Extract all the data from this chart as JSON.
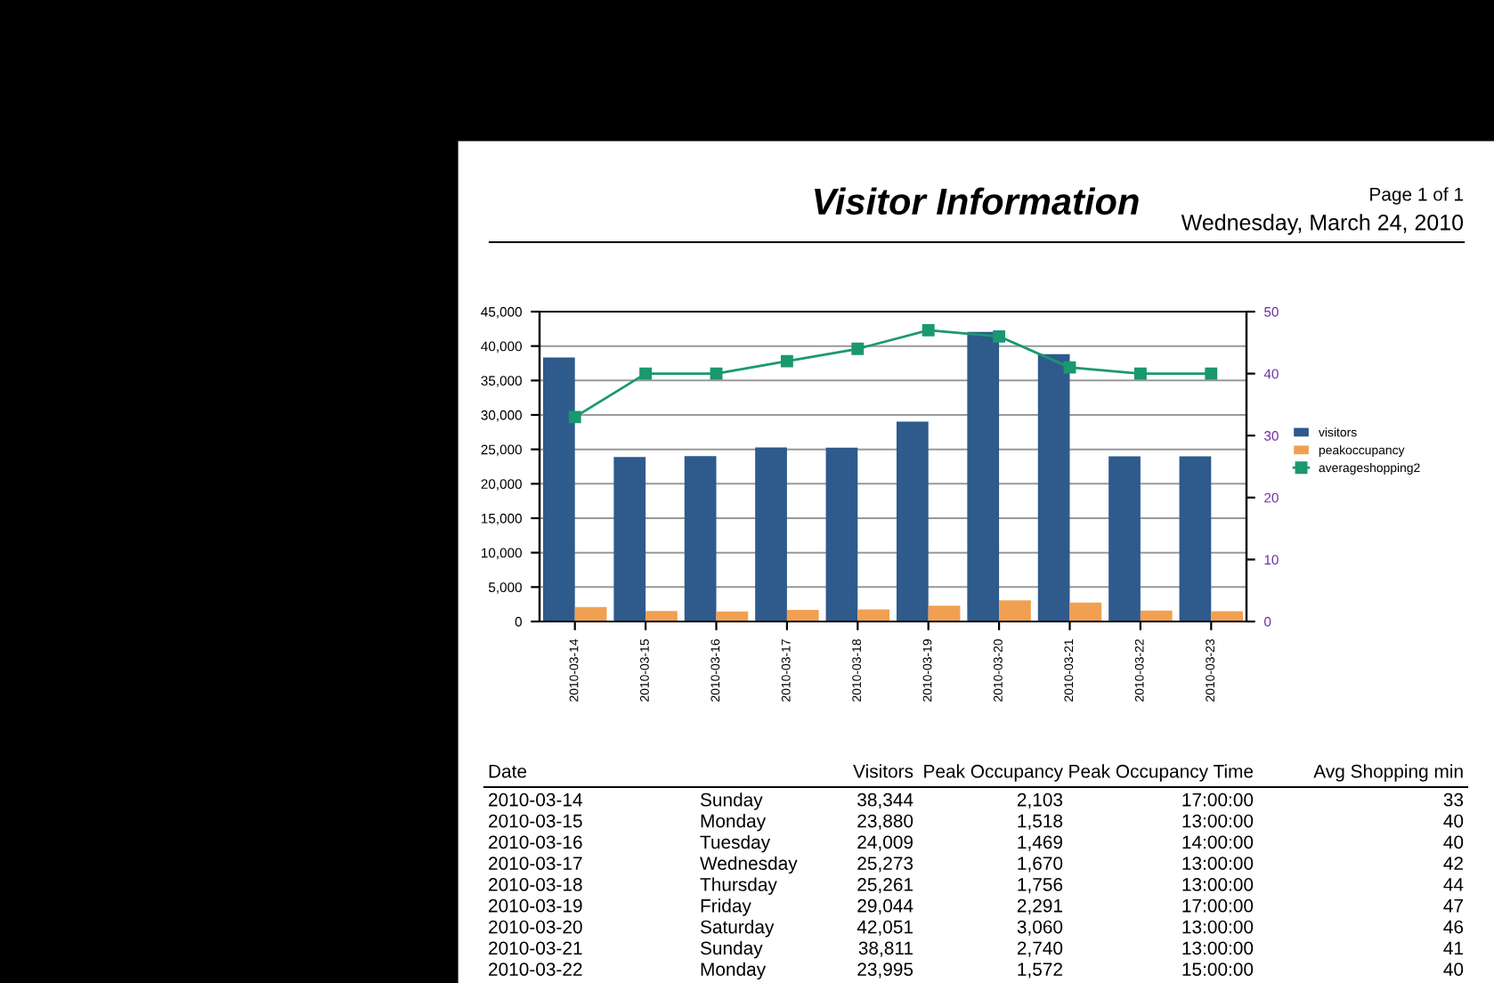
{
  "chart_data": [
    {
      "type": "bar",
      "title": "Visitor Information",
      "annotations": [
        "Page 1 of 1",
        "Wednesday, March 24, 2010"
      ],
      "categories": [
        "2010-03-14",
        "2010-03-15",
        "2010-03-16",
        "2010-03-17",
        "2010-03-18",
        "2010-03-19",
        "2010-03-20",
        "2010-03-21",
        "2010-03-22",
        "2010-03-23"
      ],
      "series": [
        {
          "name": "visitors",
          "color": "#2e5a8c",
          "values": [
            38344,
            23880,
            24009,
            25273,
            25261,
            29044,
            42051,
            38811,
            23995,
            24000
          ]
        },
        {
          "name": "peakoccupancy",
          "color": "#f0a050",
          "values": [
            2103,
            1518,
            1469,
            1670,
            1756,
            2291,
            3060,
            2740,
            1572,
            1500
          ]
        },
        {
          "name": "averageshopping2",
          "type": "line",
          "axis": "y2",
          "color": "#1a9870",
          "marker": "square",
          "values": [
            33,
            40,
            40,
            42,
            44,
            47,
            46,
            41,
            40,
            40
          ]
        }
      ],
      "ylim": [
        0,
        45000
      ],
      "yticks": [
        0,
        {
          "value": 5000,
          "label": "5,000"
        },
        {
          "value": 10000,
          "label": "10,000"
        },
        {
          "value": 15000,
          "label": "15,000"
        },
        {
          "value": 20000,
          "label": "20,000"
        },
        {
          "value": 25000,
          "label": "25,000"
        },
        {
          "value": 30000,
          "label": "30,000"
        },
        {
          "value": 35000,
          "label": "35,000"
        },
        {
          "value": 40000,
          "label": "40,000"
        },
        {
          "value": 45000,
          "label": "45,000"
        }
      ],
      "y2lim": [
        0,
        50
      ],
      "y2ticks": [
        0,
        10,
        20,
        30,
        40,
        50
      ],
      "grid": "y",
      "legend": "right"
    },
    {
      "type": "other",
      "annotations": [
        "Date",
        "Visitors",
        "Peak Occupancy",
        "Peak Occupancy Time",
        "Avg Shopping min",
        "2010-03-14",
        "Sunday",
        "38,344",
        "2,103",
        "17:00:00",
        "33",
        "2010-03-15",
        "Monday",
        "23,880",
        "1,518",
        "13:00:00",
        "40",
        "2010-03-16",
        "Tuesday",
        "24,009",
        "1,469",
        "14:00:00",
        "40",
        "2010-03-17",
        "Wednesday",
        "25,273",
        "1,670",
        "13:00:00",
        "42",
        "2010-03-18",
        "Thursday",
        "25,261",
        "1,756",
        "13:00:00",
        "44",
        "2010-03-19",
        "Friday",
        "29,044",
        "2,291",
        "17:00:00",
        "47",
        "2010-03-20",
        "Saturday",
        "42,051",
        "3,060",
        "13:00:00",
        "46",
        "2010-03-21",
        "Sunday",
        "38,811",
        "2,740",
        "13:00:00",
        "41",
        "2010-03-22",
        "Monday",
        "23,995",
        "1,572",
        "15:00:00",
        "40"
      ]
    }
  ]
}
